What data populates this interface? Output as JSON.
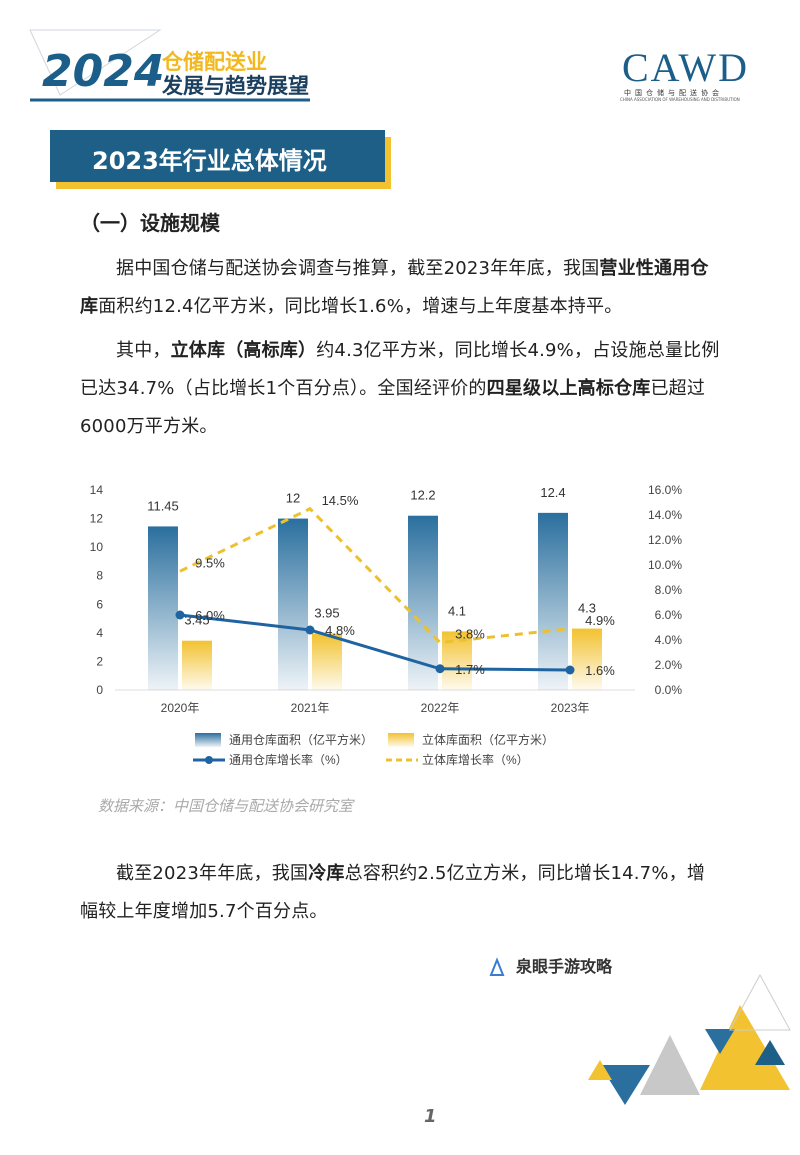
{
  "header": {
    "year": "2024",
    "line1": "仓储配送业",
    "line2": "发展与趋势展望",
    "logo": "CAWD",
    "logo_cn": "中国仓储与配送协会",
    "logo_en": "CHINA ASSOCIATION OF WAREHOUSING AND DISTRIBUTION"
  },
  "section_title": "2023年行业总体情况",
  "subsection_title": "（一）设施规模",
  "paragraphs": [
    [
      "据中国仓储与配送协会调查与推算，截至2023年年底，我国",
      "营业性通用仓库",
      "面积约12.4亿平方米，同比增长1.6%，增速与上年度基本持平。"
    ],
    [
      "其中，",
      "立体库（高标库）",
      "约4.3亿平方米，同比增长4.9%，占设施总量比例已达34.7%（占比增长1个百分点）。全国经评价的",
      "四星级以上高标仓库",
      "已超过6000万平方米。"
    ],
    [
      "截至2023年年底，我国",
      "冷库",
      "总容积约2.5亿立方米，同比增长14.7%，增幅较上年度增加5.7个百分点。"
    ]
  ],
  "chart_data": {
    "type": "bar",
    "categories": [
      "2020年",
      "2021年",
      "2022年",
      "2023年"
    ],
    "series": [
      {
        "name": "通用仓库面积（亿平方米）",
        "type": "bar",
        "color": "#2a6f9e",
        "values": [
          11.45,
          12,
          12.2,
          12.4
        ]
      },
      {
        "name": "立体库面积（亿平方米）",
        "type": "bar",
        "color": "#f2c230",
        "values": [
          3.45,
          3.95,
          4.1,
          4.3
        ]
      },
      {
        "name": "通用仓库增长率（%）",
        "type": "line",
        "axis": "y2",
        "color": "#1f64a0",
        "line_style": "solid",
        "values": [
          6.0,
          4.8,
          1.7,
          1.6
        ],
        "value_labels": [
          "6.0%",
          "4.8%",
          "1.7%",
          "1.6%"
        ]
      },
      {
        "name": "立体库增长率（%）",
        "type": "line",
        "axis": "y2",
        "color": "#edc12e",
        "line_style": "dashed",
        "values": [
          9.5,
          14.5,
          3.8,
          4.9
        ],
        "value_labels": [
          "9.5%",
          "14.5%",
          "3.8%",
          "4.9%"
        ]
      }
    ],
    "ylim": [
      0,
      14
    ],
    "yticks": [
      0,
      2,
      4,
      6,
      8,
      10,
      12,
      14
    ],
    "y2lim": [
      0,
      16
    ],
    "y2ticks": [
      {
        "value": 0,
        "label": "0.0%"
      },
      {
        "value": 2,
        "label": "2.0%"
      },
      {
        "value": 4,
        "label": "4.0%"
      },
      {
        "value": 6,
        "label": "6.0%"
      },
      {
        "value": 8,
        "label": "8.0%"
      },
      {
        "value": 10,
        "label": "10.0%"
      },
      {
        "value": 12,
        "label": "12.0%"
      },
      {
        "value": 14,
        "label": "14.0%"
      },
      {
        "value": 16,
        "label": "16.0%"
      }
    ],
    "grid": false
  },
  "source": "数据来源：中国仓储与配送协会研究室",
  "watermark": "泉眼手游攻略",
  "page_number": "1"
}
